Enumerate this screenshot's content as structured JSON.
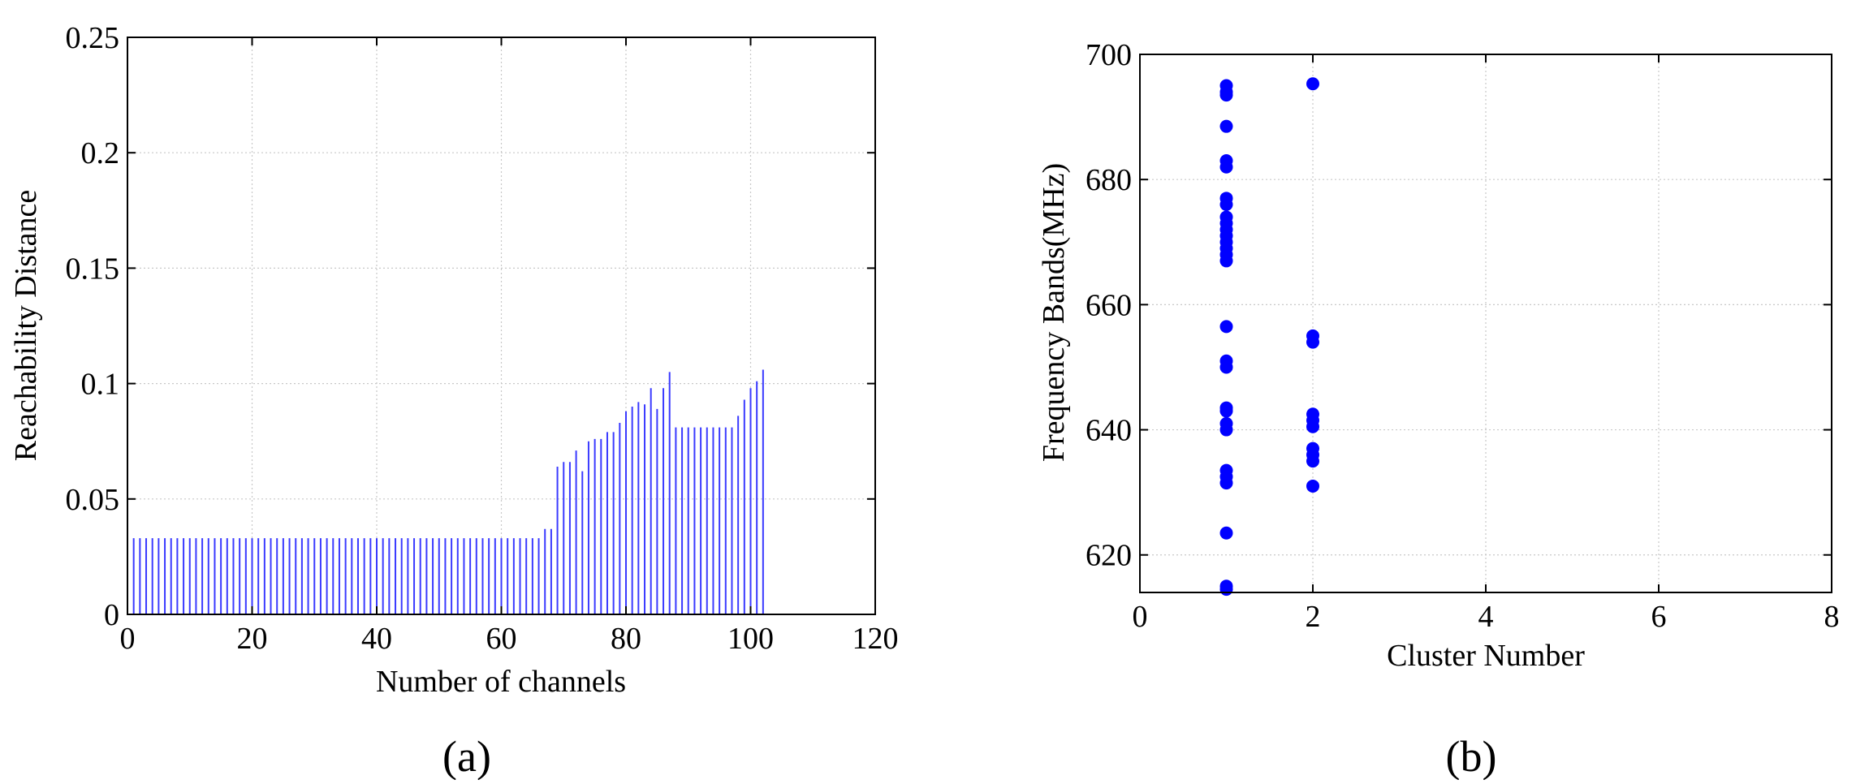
{
  "chart_data": [
    {
      "type": "bar",
      "panel_label": "(a)",
      "xlabel": "Number of channels",
      "ylabel": "Reachability Distance",
      "xlim": [
        0,
        120
      ],
      "ylim": [
        0,
        0.25
      ],
      "xticks": [
        0,
        20,
        40,
        60,
        80,
        100,
        120
      ],
      "xtick_labels": [
        "0",
        "20",
        "40",
        "60",
        "80",
        "100",
        "120"
      ],
      "yticks": [
        0,
        0.05,
        0.1,
        0.15,
        0.2,
        0.25
      ],
      "ytick_labels": [
        "0",
        "0.05",
        "0.1",
        "0.15",
        "0.2",
        "0.25"
      ],
      "grid": true,
      "color": "#3a3aff",
      "x": [
        1,
        2,
        3,
        4,
        5,
        6,
        7,
        8,
        9,
        10,
        11,
        12,
        13,
        14,
        15,
        16,
        17,
        18,
        19,
        20,
        21,
        22,
        23,
        24,
        25,
        26,
        27,
        28,
        29,
        30,
        31,
        32,
        33,
        34,
        35,
        36,
        37,
        38,
        39,
        40,
        41,
        42,
        43,
        44,
        45,
        46,
        47,
        48,
        49,
        50,
        51,
        52,
        53,
        54,
        55,
        56,
        57,
        58,
        59,
        60,
        61,
        62,
        63,
        64,
        65,
        66,
        67,
        68,
        69,
        70,
        71,
        72,
        73,
        74,
        75,
        76,
        77,
        78,
        79,
        80,
        81,
        82,
        83,
        84,
        85,
        86,
        87,
        88,
        89,
        90,
        91,
        92,
        93,
        94,
        95,
        96,
        97,
        98,
        99,
        100,
        101,
        102
      ],
      "values": [
        0.033,
        0.033,
        0.033,
        0.033,
        0.033,
        0.033,
        0.033,
        0.033,
        0.033,
        0.033,
        0.033,
        0.033,
        0.033,
        0.033,
        0.033,
        0.033,
        0.033,
        0.033,
        0.033,
        0.033,
        0.033,
        0.033,
        0.033,
        0.033,
        0.033,
        0.033,
        0.033,
        0.033,
        0.033,
        0.033,
        0.033,
        0.033,
        0.033,
        0.033,
        0.033,
        0.033,
        0.033,
        0.033,
        0.033,
        0.033,
        0.033,
        0.033,
        0.033,
        0.033,
        0.033,
        0.033,
        0.033,
        0.033,
        0.033,
        0.033,
        0.033,
        0.033,
        0.033,
        0.033,
        0.033,
        0.033,
        0.033,
        0.033,
        0.033,
        0.033,
        0.033,
        0.033,
        0.033,
        0.033,
        0.033,
        0.033,
        0.037,
        0.037,
        0.064,
        0.066,
        0.066,
        0.071,
        0.062,
        0.075,
        0.076,
        0.076,
        0.079,
        0.079,
        0.083,
        0.088,
        0.09,
        0.092,
        0.091,
        0.098,
        0.089,
        0.098,
        0.105,
        0.081,
        0.081,
        0.081,
        0.081,
        0.081,
        0.081,
        0.081,
        0.081,
        0.081,
        0.081,
        0.086,
        0.093,
        0.098,
        0.101,
        0.106
      ]
    },
    {
      "type": "scatter",
      "panel_label": "(b)",
      "xlabel": "Cluster Number",
      "ylabel": "Frequency Bands(MHz)",
      "xlim": [
        0,
        8
      ],
      "ylim": [
        614,
        700
      ],
      "xticks": [
        0,
        2,
        4,
        6,
        8
      ],
      "xtick_labels": [
        "0",
        "2",
        "4",
        "6",
        "8"
      ],
      "yticks": [
        620,
        640,
        660,
        680,
        700
      ],
      "ytick_labels": [
        "620",
        "640",
        "660",
        "680",
        "700"
      ],
      "grid": true,
      "color": "#0000ff",
      "points": [
        {
          "x": 1,
          "y": 695
        },
        {
          "x": 1,
          "y": 694
        },
        {
          "x": 1,
          "y": 693.5
        },
        {
          "x": 1,
          "y": 688.5
        },
        {
          "x": 1,
          "y": 683
        },
        {
          "x": 1,
          "y": 682
        },
        {
          "x": 1,
          "y": 677
        },
        {
          "x": 1,
          "y": 676
        },
        {
          "x": 1,
          "y": 674
        },
        {
          "x": 1,
          "y": 673
        },
        {
          "x": 1,
          "y": 672
        },
        {
          "x": 1,
          "y": 671
        },
        {
          "x": 1,
          "y": 670
        },
        {
          "x": 1,
          "y": 669
        },
        {
          "x": 1,
          "y": 668
        },
        {
          "x": 1,
          "y": 667
        },
        {
          "x": 1,
          "y": 656.5
        },
        {
          "x": 1,
          "y": 651
        },
        {
          "x": 1,
          "y": 650
        },
        {
          "x": 1,
          "y": 643.5
        },
        {
          "x": 1,
          "y": 643
        },
        {
          "x": 1,
          "y": 641
        },
        {
          "x": 1,
          "y": 640
        },
        {
          "x": 1,
          "y": 633.5
        },
        {
          "x": 1,
          "y": 632.5
        },
        {
          "x": 1,
          "y": 631.5
        },
        {
          "x": 1,
          "y": 623.5
        },
        {
          "x": 1,
          "y": 615
        },
        {
          "x": 1,
          "y": 614.5
        },
        {
          "x": 2,
          "y": 695.3
        },
        {
          "x": 2,
          "y": 655
        },
        {
          "x": 2,
          "y": 654
        },
        {
          "x": 2,
          "y": 642.5
        },
        {
          "x": 2,
          "y": 641.5
        },
        {
          "x": 2,
          "y": 640.5
        },
        {
          "x": 2,
          "y": 637
        },
        {
          "x": 2,
          "y": 636
        },
        {
          "x": 2,
          "y": 635
        },
        {
          "x": 2,
          "y": 631
        }
      ]
    }
  ]
}
